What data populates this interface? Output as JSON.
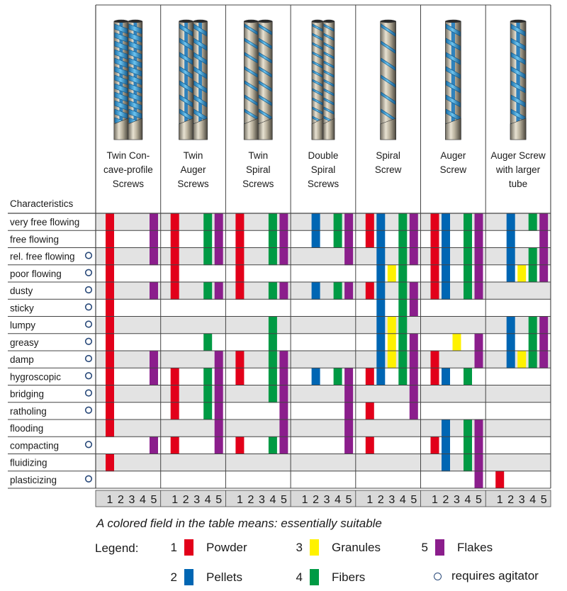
{
  "characteristics_header": "Characteristics",
  "columns": [
    {
      "title": [
        "Twin Con-",
        "cave-profile",
        "Screws"
      ],
      "screw": "twin-concave"
    },
    {
      "title": [
        "Twin",
        "Auger",
        "Screws"
      ],
      "screw": "twin-auger"
    },
    {
      "title": [
        "Twin",
        "Spiral",
        "Screws"
      ],
      "screw": "twin-spiral"
    },
    {
      "title": [
        "Double",
        "Spiral",
        "Screws"
      ],
      "screw": "double-spiral"
    },
    {
      "title": [
        "Spiral",
        "Screw"
      ],
      "screw": "spiral"
    },
    {
      "title": [
        "Auger",
        "Screw"
      ],
      "screw": "auger"
    },
    {
      "title": [
        "Auger Screw",
        "with larger",
        "tube"
      ],
      "screw": "auger-large"
    }
  ],
  "rows": [
    {
      "label": "very free flowing",
      "agitator": false
    },
    {
      "label": "free flowing",
      "agitator": false
    },
    {
      "label": "rel. free flowing",
      "agitator": true
    },
    {
      "label": "poor flowing",
      "agitator": true
    },
    {
      "label": "dusty",
      "agitator": true
    },
    {
      "label": "sticky",
      "agitator": true
    },
    {
      "label": "lumpy",
      "agitator": true
    },
    {
      "label": "greasy",
      "agitator": true
    },
    {
      "label": "damp",
      "agitator": true
    },
    {
      "label": "hygroscopic",
      "agitator": true
    },
    {
      "label": "bridging",
      "agitator": true
    },
    {
      "label": "ratholing",
      "agitator": true
    },
    {
      "label": "flooding",
      "agitator": false
    },
    {
      "label": "compacting",
      "agitator": true
    },
    {
      "label": "fluidizing",
      "agitator": false
    },
    {
      "label": "plasticizing",
      "agitator": true
    }
  ],
  "sub_columns": [
    "1",
    "2",
    "3",
    "4",
    "5"
  ],
  "colors": {
    "1": "#e2001a",
    "2": "#0066b3",
    "3": "#fff200",
    "4": "#009a44",
    "5": "#8b1e8c",
    "row_shade": "#e3e3e3",
    "grid": "#444444",
    "subheader_bg": "#d9d9d9",
    "screw_blue": "#3aa0dc",
    "screw_tube": "#c8c0ae",
    "agitator_ring": "#2a4a7a"
  },
  "suitability": [
    [
      [
        1,
        5
      ],
      [
        1,
        4,
        5
      ],
      [
        1,
        4,
        5
      ],
      [
        2,
        4,
        5
      ],
      [
        1,
        2,
        4,
        5
      ],
      [
        1,
        2,
        4,
        5
      ],
      [
        2,
        4,
        5
      ]
    ],
    [
      [
        1,
        5
      ],
      [
        1,
        4,
        5
      ],
      [
        1,
        4,
        5
      ],
      [
        2,
        4,
        5
      ],
      [
        1,
        2,
        4,
        5
      ],
      [
        1,
        2,
        4,
        5
      ],
      [
        2,
        5
      ]
    ],
    [
      [
        1,
        5
      ],
      [
        1,
        4,
        5
      ],
      [
        1,
        4,
        5
      ],
      [
        5
      ],
      [
        2,
        4,
        5
      ],
      [
        1,
        2,
        4,
        5
      ],
      [
        2,
        4,
        5
      ]
    ],
    [
      [
        1
      ],
      [
        1
      ],
      [
        1
      ],
      [],
      [
        2,
        4,
        3
      ],
      [
        1,
        2,
        4,
        5
      ],
      [
        2,
        4,
        3,
        5
      ]
    ],
    [
      [
        1,
        5
      ],
      [
        1,
        4,
        5
      ],
      [
        1,
        4,
        5
      ],
      [
        2,
        4,
        5
      ],
      [
        1,
        2,
        4,
        5
      ],
      [
        1,
        2,
        4,
        5
      ],
      []
    ],
    [
      [
        1
      ],
      [],
      [],
      [],
      [
        2,
        4,
        5
      ],
      [],
      []
    ],
    [
      [
        1
      ],
      [],
      [
        4
      ],
      [],
      [
        2,
        4,
        3
      ],
      [],
      [
        2,
        4,
        5
      ]
    ],
    [
      [
        1
      ],
      [
        4
      ],
      [
        4
      ],
      [],
      [
        2,
        4,
        3,
        5
      ],
      [
        3,
        5
      ],
      [
        2,
        4,
        5
      ]
    ],
    [
      [
        1,
        5
      ],
      [
        5
      ],
      [
        1,
        4,
        5
      ],
      [],
      [
        2,
        4,
        3,
        5
      ],
      [
        1,
        5
      ],
      [
        2,
        4,
        3,
        5
      ]
    ],
    [
      [
        1,
        5
      ],
      [
        1,
        4,
        5
      ],
      [
        1,
        4,
        5
      ],
      [
        2,
        4,
        5
      ],
      [
        1,
        2,
        4,
        5
      ],
      [
        1,
        2,
        4
      ],
      []
    ],
    [
      [
        1
      ],
      [
        1,
        4,
        5
      ],
      [
        4,
        5
      ],
      [
        5
      ],
      [
        5
      ],
      [],
      []
    ],
    [
      [
        1
      ],
      [
        1,
        4,
        5
      ],
      [
        5
      ],
      [
        5
      ],
      [
        1,
        5
      ],
      [],
      []
    ],
    [
      [
        1
      ],
      [
        5
      ],
      [
        5
      ],
      [
        5
      ],
      [],
      [
        2,
        4,
        5
      ],
      []
    ],
    [
      [
        5
      ],
      [
        1,
        5
      ],
      [
        1,
        4,
        5
      ],
      [
        5
      ],
      [
        1
      ],
      [
        1,
        2,
        4,
        5
      ],
      []
    ],
    [
      [
        1
      ],
      [],
      [],
      [],
      [],
      [
        2,
        4,
        5
      ],
      []
    ],
    [
      [],
      [],
      [],
      [],
      [],
      [
        5
      ],
      [
        1
      ]
    ]
  ],
  "note": "A colored field in the table means: essentially suitable",
  "legend": {
    "title": "Legend:",
    "items": [
      {
        "num": "1",
        "label": "Powder",
        "color": "#e2001a"
      },
      {
        "num": "2",
        "label": "Pellets",
        "color": "#0066b3"
      },
      {
        "num": "3",
        "label": "Granules",
        "color": "#fff200"
      },
      {
        "num": "4",
        "label": "Fibers",
        "color": "#009a44"
      },
      {
        "num": "5",
        "label": "Flakes",
        "color": "#8b1e8c"
      }
    ],
    "agitator_label": "requires agitator"
  }
}
